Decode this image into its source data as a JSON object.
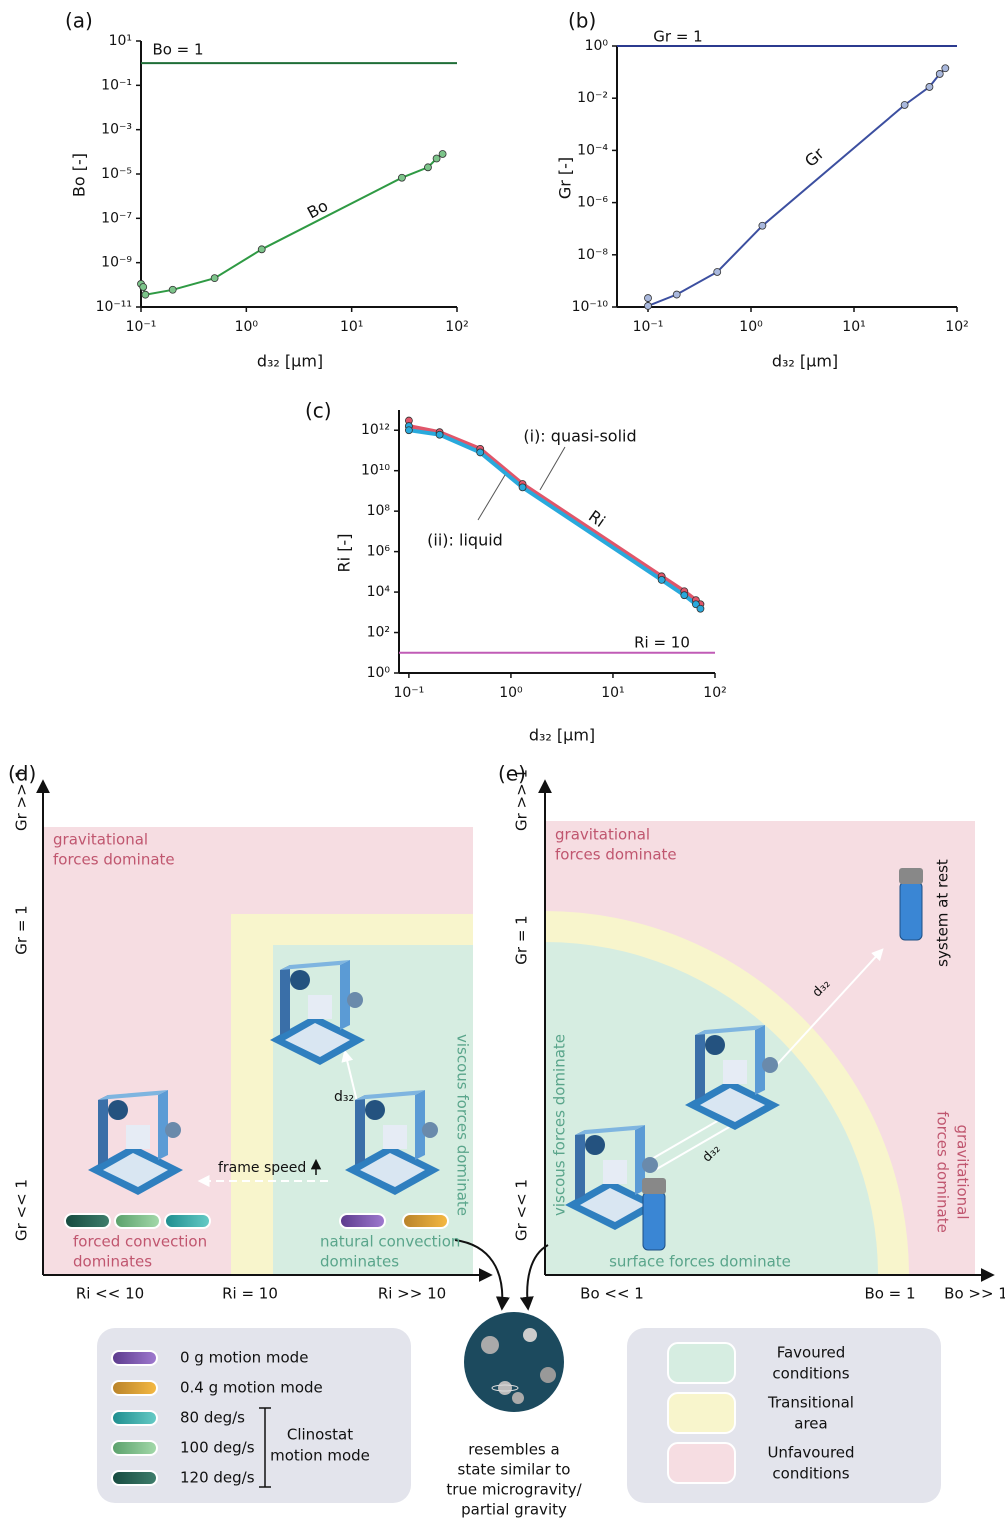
{
  "chart_data": [
    {
      "type": "line",
      "title": "(a)",
      "y_label": "Bo [-]",
      "x_label": "d₃₂ [µm]",
      "xlog": true,
      "ylog": true,
      "xlim": [
        0.1,
        100
      ],
      "ylim": [
        1e-11,
        10
      ],
      "xticks": [
        {
          "value": 0.1,
          "label": "10⁻¹"
        },
        {
          "value": 1,
          "label": "10⁰"
        },
        {
          "value": 10,
          "label": "10¹"
        },
        {
          "value": 100,
          "label": "10²"
        }
      ],
      "yticks": [
        {
          "value": 1e-11,
          "label": "10⁻¹¹"
        },
        {
          "value": 1e-09,
          "label": "10⁻⁹"
        },
        {
          "value": 1e-07,
          "label": "10⁻⁷"
        },
        {
          "value": 1e-05,
          "label": "10⁻⁵"
        },
        {
          "value": 0.001,
          "label": "10⁻³"
        },
        {
          "value": 0.1,
          "label": "10⁻¹"
        },
        {
          "value": 10,
          "label": "10¹"
        }
      ],
      "series": [
        {
          "name": "Bo",
          "color": "#2f9a44",
          "marker_color": "#7cc48a",
          "x": [
            0.1,
            0.105,
            0.11,
            0.2,
            0.5,
            1.4,
            30,
            53,
            64,
            73
          ],
          "values": [
            1.1e-10,
            8e-11,
            3.6e-11,
            6e-11,
            2e-10,
            4e-09,
            6.8e-06,
            2e-05,
            5e-05,
            8e-05
          ]
        }
      ],
      "hlines": [
        {
          "value": 1,
          "label": "Bo = 1",
          "color": "#1f6e37"
        }
      ]
    },
    {
      "type": "line",
      "title": "(b)",
      "y_label": "Gr [-]",
      "x_label": "d₃₂ [µm]",
      "xlog": true,
      "ylog": true,
      "xlim": [
        0.05,
        100
      ],
      "ylim": [
        1e-10,
        1
      ],
      "xticks": [
        {
          "value": 0.1,
          "label": "10⁻¹"
        },
        {
          "value": 1,
          "label": "10⁰"
        },
        {
          "value": 10,
          "label": "10¹"
        },
        {
          "value": 100,
          "label": "10²"
        }
      ],
      "yticks": [
        {
          "value": 1e-10,
          "label": "10⁻¹⁰"
        },
        {
          "value": 1e-08,
          "label": "10⁻⁸"
        },
        {
          "value": 1e-06,
          "label": "10⁻⁶"
        },
        {
          "value": 0.0001,
          "label": "10⁻⁴"
        },
        {
          "value": 0.01,
          "label": "10⁻²"
        },
        {
          "value": 1,
          "label": "10⁰"
        }
      ],
      "series": [
        {
          "name": "Gr",
          "color": "#3c4fa0",
          "marker_color": "#a9b8dd",
          "x": [
            0.1,
            0.1,
            0.19,
            0.47,
            1.29,
            31,
            54,
            68,
            77
          ],
          "values": [
            2.2e-10,
            1.1e-10,
            3e-10,
            2.2e-09,
            1.3e-07,
            0.0055,
            0.027,
            0.085,
            0.14
          ]
        }
      ],
      "hlines": [
        {
          "value": 1,
          "label": "Gr = 1",
          "color": "#2b3a8f"
        }
      ]
    },
    {
      "type": "line",
      "title": "(c)",
      "y_label": "Ri [-]",
      "x_label": "d₃₂ [µm]",
      "annotation": "Ri",
      "xlog": true,
      "ylog": true,
      "xlim": [
        0.08,
        100
      ],
      "ylim": [
        1,
        10000000000000.0
      ],
      "xticks": [
        {
          "value": 0.1,
          "label": "10⁻¹"
        },
        {
          "value": 1,
          "label": "10⁰"
        },
        {
          "value": 10,
          "label": "10¹"
        },
        {
          "value": 100,
          "label": "10²"
        }
      ],
      "yticks": [
        {
          "value": 1,
          "label": "10⁰"
        },
        {
          "value": 100,
          "label": "10²"
        },
        {
          "value": 10000,
          "label": "10⁴"
        },
        {
          "value": 1000000,
          "label": "10⁶"
        },
        {
          "value": 100000000,
          "label": "10⁸"
        },
        {
          "value": 10000000000,
          "label": "10¹⁰"
        },
        {
          "value": 1000000000000,
          "label": "10¹²"
        }
      ],
      "series": [
        {
          "name": "(i): quasi-solid",
          "color": "#e0566a",
          "marker_color": "#e0566a",
          "x": [
            0.1,
            0.1,
            0.2,
            0.5,
            1.3,
            30,
            50,
            65,
            72
          ],
          "values": [
            3000000000000.0,
            1600000000000.0,
            800000000000.0,
            120000000000.0,
            2200000000.0,
            60000,
            11000,
            4000,
            2500
          ]
        },
        {
          "name": "(ii): liquid",
          "color": "#29a9dc",
          "marker_color": "#29a9dc",
          "x": [
            0.1,
            0.1,
            0.2,
            0.5,
            1.3,
            30,
            50,
            65,
            72
          ],
          "values": [
            1600000000000.0,
            1000000000000.0,
            600000000000.0,
            80000000000.0,
            1500000000.0,
            40000,
            7000,
            2500,
            1500
          ]
        }
      ],
      "hlines": [
        {
          "value": 10,
          "label": "Ri = 10",
          "color": "#c05cb6"
        }
      ]
    }
  ],
  "panel_d": {
    "title": "(d)",
    "y_labels": [
      "Gr >> 1",
      "Gr = 1",
      "Gr << 1"
    ],
    "x_labels": [
      "Ri << 10",
      "Ri = 10",
      "Ri >> 10"
    ],
    "gravitational": [
      "gravitational",
      "forces dominate"
    ],
    "viscous": "viscous forces dominate",
    "forced": [
      "forced convection",
      "dominates"
    ],
    "natural": [
      "natural convection",
      "dominates"
    ],
    "frame_speed": "frame speed",
    "d32": "d₃₂"
  },
  "panel_e": {
    "title": "(e)",
    "y_labels": [
      "Gr >> 1",
      "Gr = 1",
      "Gr << 1"
    ],
    "x_labels": [
      "Bo << 1",
      "Bo = 1",
      "Bo >> 1"
    ],
    "gravitational": [
      "gravitational",
      "forces dominate"
    ],
    "gravitational_right": [
      "gravitational",
      "forces dominate"
    ],
    "viscous": "viscous forces dominate",
    "surface": "surface forces dominate",
    "rest": "system at rest",
    "d32": [
      "d₃₂",
      "d₃₂"
    ]
  },
  "motion_legend": {
    "items": [
      {
        "label": "0 g motion mode",
        "colors": [
          "#5b3a8c",
          "#a07ad0"
        ]
      },
      {
        "label": "0.4 g motion mode",
        "colors": [
          "#b8822a",
          "#f5b942"
        ]
      },
      {
        "label": "80 deg/s",
        "colors": [
          "#1e8d8e",
          "#66cbc6"
        ]
      },
      {
        "label": "100 deg/s",
        "colors": [
          "#5aa06b",
          "#a4d9aa"
        ]
      },
      {
        "label": "120 deg/s",
        "colors": [
          "#164a3f",
          "#3f7e6c"
        ]
      }
    ],
    "group": [
      "Clinostat",
      "motion mode"
    ]
  },
  "center_text": [
    "resembles a",
    "state similar to",
    "true microgravity/",
    "partial gravity"
  ],
  "condition_legend": {
    "items": [
      {
        "label": [
          "Favoured",
          "conditions"
        ],
        "color": "#d6ede1"
      },
      {
        "label": [
          "Transitional",
          "area"
        ],
        "color": "#f8f5cc"
      },
      {
        "label": [
          "Unfavoured",
          "conditions"
        ],
        "color": "#f6dde2"
      }
    ]
  }
}
